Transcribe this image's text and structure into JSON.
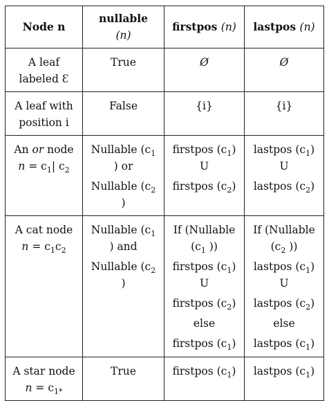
{
  "header": {
    "col1": "Node n",
    "col2_main": "nullable",
    "col2_n": "(n)",
    "col3_main": "firstpos",
    "col3_n": "(n)",
    "col4_main": "lastpos",
    "col4_n": "(n)"
  },
  "rows": [
    {
      "node": [
        "A leaf",
        "labeled Ɛ"
      ],
      "nullable": [
        "True"
      ],
      "firstpos": [
        "Ø"
      ],
      "lastpos": [
        "Ø"
      ]
    },
    {
      "node": [
        "A leaf with",
        "position i"
      ],
      "nullable": [
        "False"
      ],
      "firstpos": [
        "{i}"
      ],
      "lastpos": [
        "{i}"
      ]
    },
    {
      "node_a": "An ",
      "node_or": "or",
      "node_b": " node",
      "node_eq": "= c",
      "nullable": [
        "Nullable (c",
        ") or",
        "Nullable (c",
        ")"
      ],
      "firstpos": [
        "firstpos (c",
        ")",
        "U",
        "firstpos (c",
        ")"
      ],
      "lastpos": [
        "lastpos (c",
        ")",
        "U",
        "lastpos (c",
        ")"
      ]
    },
    {
      "node": [
        "A cat node"
      ],
      "node_eq": "= c",
      "nullable": [
        "Nullable (c",
        ") and",
        "Nullable (c",
        ")"
      ],
      "firstpos": [
        "If (Nullable",
        "(c",
        " ))",
        "firstpos (c",
        ")",
        "U",
        "firstpos (c",
        ")",
        "else",
        "firstpos (c",
        ")"
      ],
      "lastpos": [
        "If (Nullable",
        "(c",
        " ))",
        "lastpos (c",
        ")",
        "U",
        "lastpos (c",
        ")",
        "else",
        "lastpos (c",
        ")"
      ]
    },
    {
      "node": [
        "A star node"
      ],
      "node_eq": "= c",
      "nullable": [
        "True"
      ],
      "firstpos": [
        "firstpos (c",
        ")"
      ],
      "lastpos": [
        "lastpos (c",
        ")"
      ]
    }
  ],
  "symbols": {
    "n": "n",
    "one": "1",
    "two": "2",
    "bar": "| c",
    "star": "*"
  }
}
